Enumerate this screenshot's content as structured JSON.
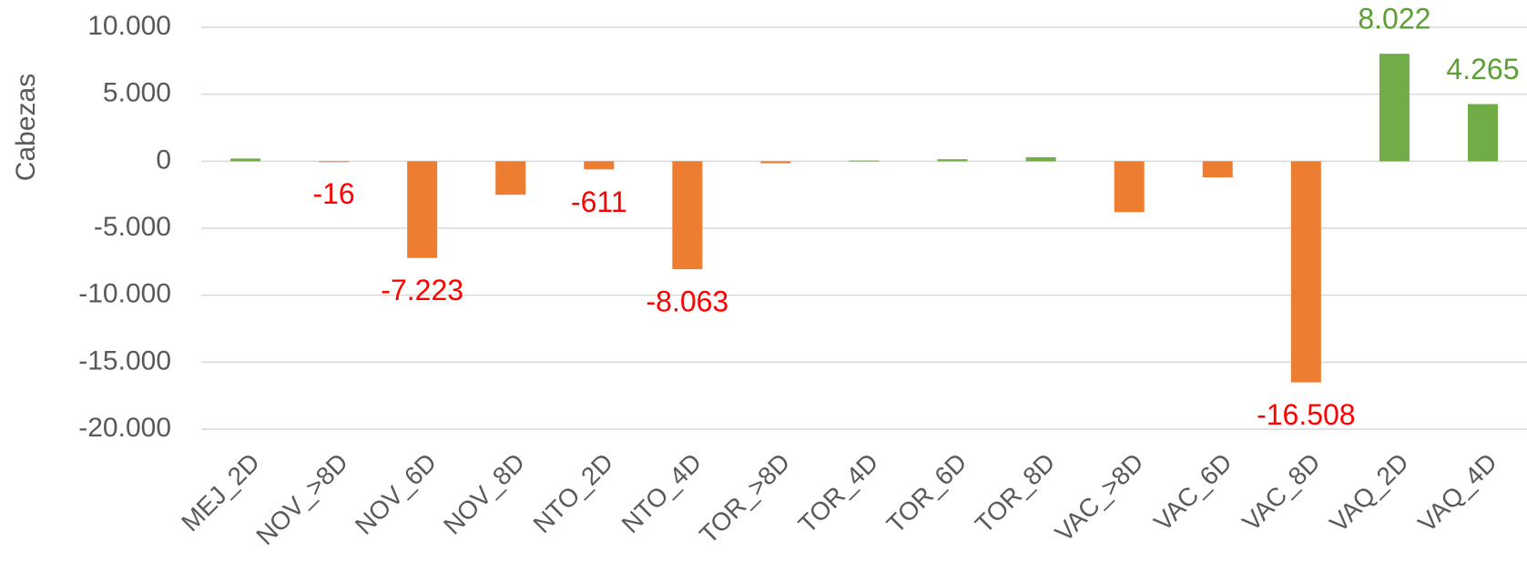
{
  "chart_data": {
    "type": "bar",
    "y_label": "Cabezas",
    "categories": [
      "MEJ_2D",
      "NOV_>8D",
      "NOV_6D",
      "NOV_8D",
      "NTO_2D",
      "NTO_4D",
      "TOR_>8D",
      "TOR_4D",
      "TOR_6D",
      "TOR_8D",
      "VAC_>8D",
      "VAC_6D",
      "VAC_8D",
      "VAQ_2D",
      "VAQ_4D"
    ],
    "values": [
      200,
      -16,
      -7223,
      -2500,
      -611,
      -8063,
      -150,
      50,
      150,
      300,
      -3800,
      -1200,
      -16508,
      8022,
      4265
    ],
    "value_labels": [
      null,
      "-16",
      "-7.223",
      null,
      "-611",
      "-8.063",
      null,
      null,
      null,
      null,
      null,
      null,
      "-16.508",
      "8.022",
      "4.265"
    ],
    "positive_color": "#70ad47",
    "negative_color": "#ed7d31",
    "positive_label_color": "#5b9f35",
    "negative_label_color": "#ff0000",
    "ylim": [
      -20000,
      10000
    ],
    "yticks": [
      {
        "value": 10000,
        "label": "10.000"
      },
      {
        "value": 5000,
        "label": "5.000"
      },
      0,
      {
        "value": -5000,
        "label": "-5.000"
      },
      {
        "value": -10000,
        "label": "-10.000"
      },
      {
        "value": -15000,
        "label": "-15.000"
      },
      {
        "value": -20000,
        "label": "-20.000"
      }
    ],
    "grid": true
  }
}
